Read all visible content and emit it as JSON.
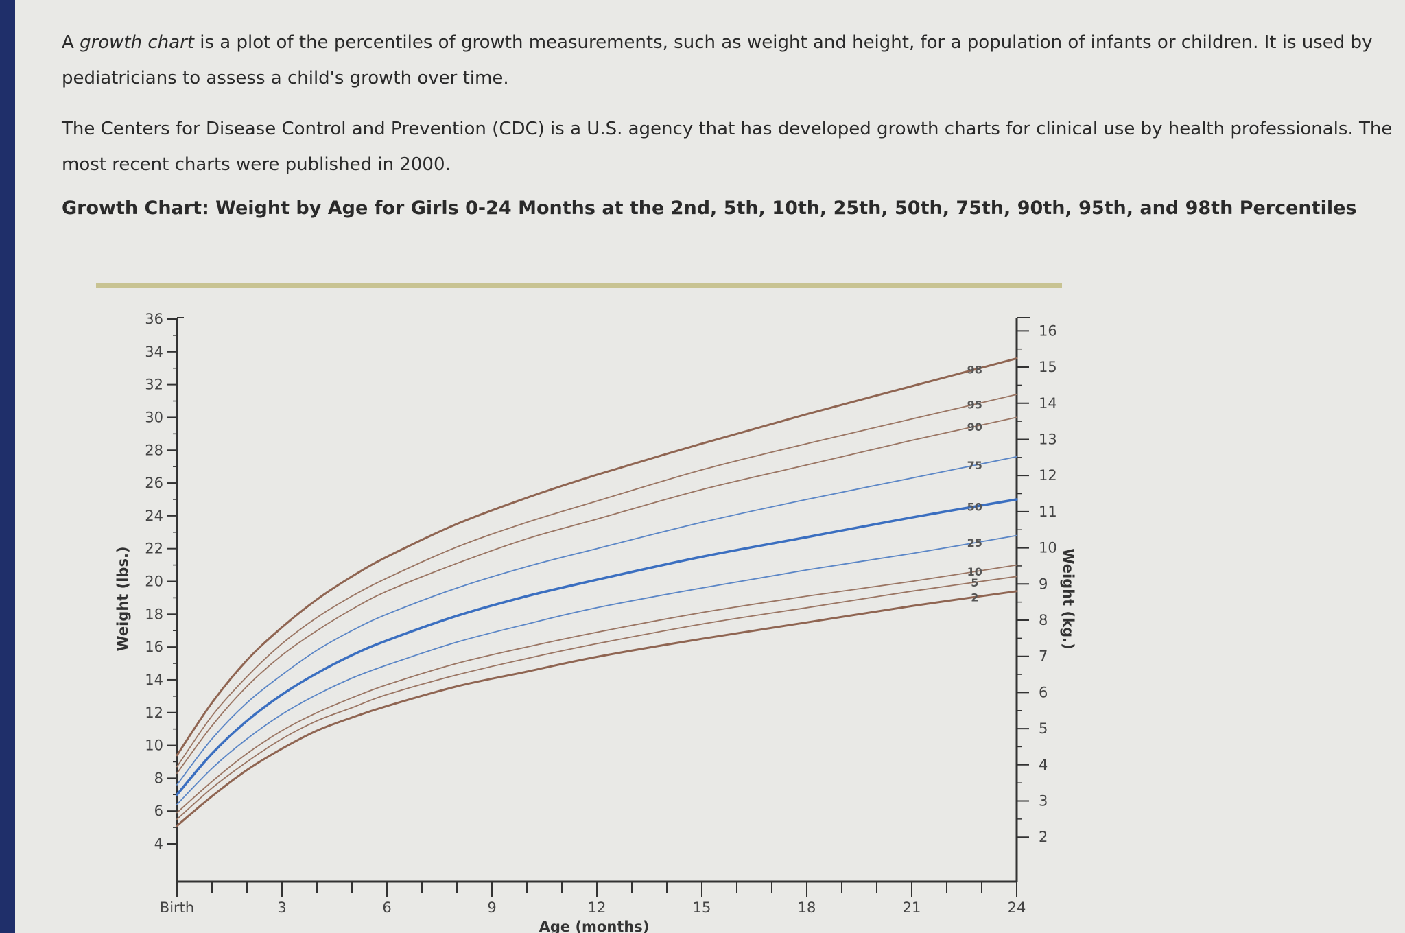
{
  "intro": {
    "lead_pre": "A ",
    "lead_em": "growth chart",
    "lead_post": " is a plot of the percentiles of growth measurements, such as weight and height, for a population of infants or children. It is used by pediatricians to assess a child's growth over time."
  },
  "cdc_paragraph": "The Centers for Disease Control and Prevention (CDC) is a U.S. agency that has developed growth charts for clinical use by health professionals. The most recent charts were published in 2000.",
  "chart_data": {
    "type": "line",
    "title": "Growth Chart: Weight by Age for Girls 0-24 Months at the 2nd, 5th, 10th, 25th, 50th, 75th, 90th, 95th, and 98th Percentiles",
    "xlabel": "Age (months)",
    "ylabel": "Weight (lbs.)",
    "y2label": "Weight (kg.)",
    "xlim": [
      0,
      24
    ],
    "ylim": [
      2,
      36
    ],
    "y2lim": [
      0.91,
      16.33
    ],
    "x_ticks": [
      {
        "value": 0,
        "label": "Birth"
      },
      {
        "value": 3,
        "label": "3"
      },
      {
        "value": 6,
        "label": "6"
      },
      {
        "value": 9,
        "label": "9"
      },
      {
        "value": 12,
        "label": "12"
      },
      {
        "value": 15,
        "label": "15"
      },
      {
        "value": 18,
        "label": "18"
      },
      {
        "value": 21,
        "label": "21"
      },
      {
        "value": 24,
        "label": "24"
      }
    ],
    "y_ticks": [
      4,
      6,
      8,
      10,
      12,
      14,
      16,
      18,
      20,
      22,
      24,
      26,
      28,
      30,
      32,
      34,
      36
    ],
    "y2_ticks": [
      2,
      3,
      4,
      5,
      6,
      7,
      8,
      9,
      10,
      11,
      12,
      13,
      14,
      15,
      16
    ],
    "colors": {
      "outer": "#8f6552",
      "inner_brown": "#9a7563",
      "blue": "#5b86c6",
      "median": "#3b6fc0",
      "axis": "#333333"
    },
    "x": [
      0,
      1,
      2,
      3,
      4,
      5,
      6,
      8,
      10,
      12,
      15,
      18,
      21,
      24
    ],
    "series": [
      {
        "name": "2",
        "label": "2",
        "color_key": "outer",
        "width": 3,
        "values": [
          5.1,
          6.9,
          8.5,
          9.8,
          10.9,
          11.7,
          12.4,
          13.6,
          14.5,
          15.4,
          16.5,
          17.5,
          18.5,
          19.4
        ]
      },
      {
        "name": "5",
        "label": "5",
        "color_key": "inner_brown",
        "width": 1.8,
        "values": [
          5.5,
          7.4,
          9.0,
          10.4,
          11.5,
          12.3,
          13.1,
          14.3,
          15.3,
          16.2,
          17.4,
          18.4,
          19.4,
          20.3
        ]
      },
      {
        "name": "10",
        "label": "10",
        "color_key": "inner_brown",
        "width": 1.8,
        "values": [
          5.9,
          7.8,
          9.5,
          10.9,
          12.0,
          12.9,
          13.7,
          15.0,
          16.0,
          16.9,
          18.1,
          19.1,
          20.0,
          21.0
        ]
      },
      {
        "name": "25",
        "label": "25",
        "color_key": "blue",
        "width": 1.8,
        "values": [
          6.4,
          8.6,
          10.4,
          11.9,
          13.1,
          14.1,
          14.9,
          16.3,
          17.4,
          18.4,
          19.6,
          20.7,
          21.7,
          22.8
        ]
      },
      {
        "name": "50",
        "label": "50",
        "color_key": "median",
        "width": 3.5,
        "values": [
          7.0,
          9.5,
          11.5,
          13.1,
          14.4,
          15.5,
          16.4,
          17.9,
          19.1,
          20.1,
          21.5,
          22.7,
          23.9,
          25.0
        ]
      },
      {
        "name": "75",
        "label": "75",
        "color_key": "blue",
        "width": 1.8,
        "values": [
          7.6,
          10.4,
          12.6,
          14.3,
          15.8,
          17.0,
          18.0,
          19.6,
          20.9,
          22.0,
          23.6,
          25.0,
          26.3,
          27.6
        ]
      },
      {
        "name": "90",
        "label": "90",
        "color_key": "inner_brown",
        "width": 1.8,
        "values": [
          8.3,
          11.2,
          13.6,
          15.5,
          17.0,
          18.3,
          19.4,
          21.1,
          22.6,
          23.8,
          25.6,
          27.1,
          28.6,
          30.0
        ]
      },
      {
        "name": "95",
        "label": "95",
        "color_key": "inner_brown",
        "width": 1.8,
        "values": [
          8.7,
          11.8,
          14.2,
          16.2,
          17.8,
          19.1,
          20.2,
          22.1,
          23.6,
          24.9,
          26.8,
          28.4,
          29.9,
          31.4
        ]
      },
      {
        "name": "98",
        "label": "98",
        "color_key": "outer",
        "width": 3,
        "values": [
          9.4,
          12.6,
          15.2,
          17.2,
          18.9,
          20.3,
          21.5,
          23.5,
          25.1,
          26.5,
          28.4,
          30.2,
          31.9,
          33.6
        ]
      }
    ],
    "grid": false,
    "legend": "inline labels near right end of curves"
  }
}
